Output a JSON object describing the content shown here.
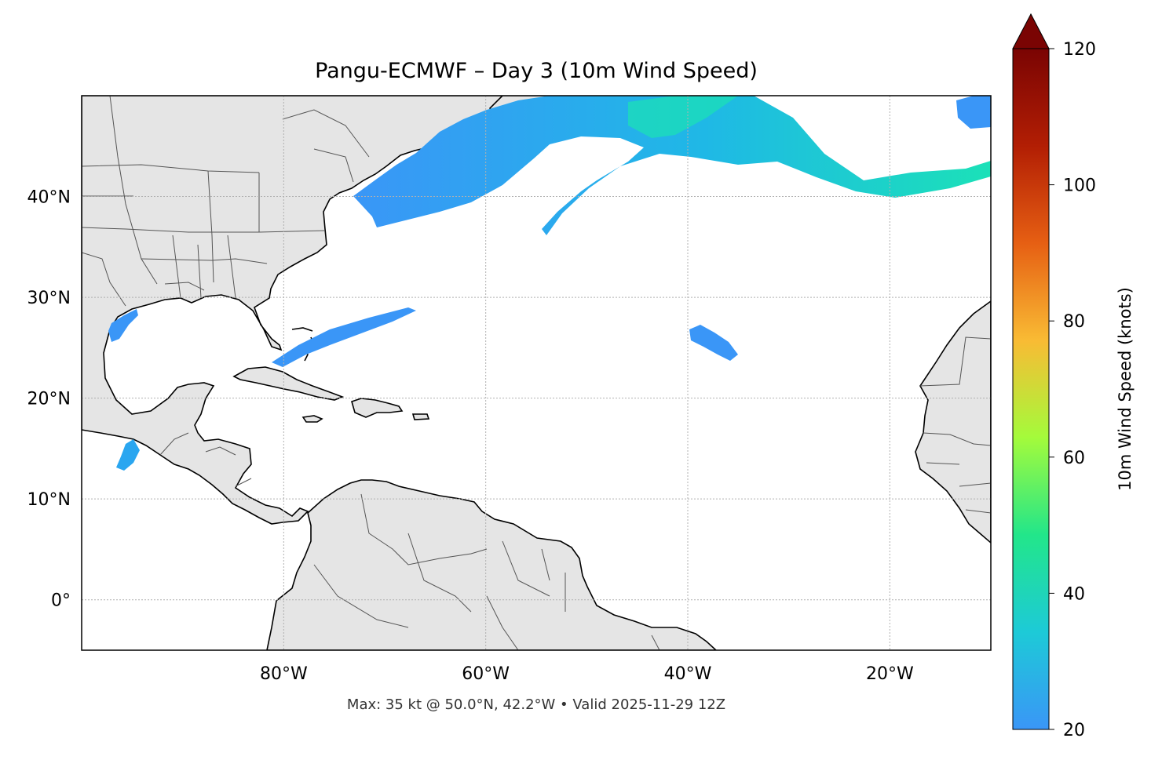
{
  "title": "Pangu-ECMWF – Day 3 (10m Wind Speed)",
  "footer": "Max: 35 kt @ 50.0°N, 42.2°W • Valid 2025-11-29 12Z",
  "map": {
    "lon_range": [
      -100,
      -10
    ],
    "lat_range": [
      -5,
      50
    ],
    "lat_ticks": [
      {
        "value": 40,
        "label": "40°N"
      },
      {
        "value": 30,
        "label": "30°N"
      },
      {
        "value": 20,
        "label": "20°N"
      },
      {
        "value": 10,
        "label": "10°N"
      },
      {
        "value": 0,
        "label": "0°"
      }
    ],
    "lon_ticks": [
      {
        "value": -80,
        "label": "80°W"
      },
      {
        "value": -60,
        "label": "60°W"
      },
      {
        "value": -40,
        "label": "40°W"
      },
      {
        "value": -20,
        "label": "20°W"
      }
    ],
    "gridlines": true,
    "colors": {
      "land": "#e5e5e5",
      "ocean": "#ffffff",
      "coastline": "#000000",
      "borders": "#555555"
    }
  },
  "colorbar": {
    "label": "10m Wind Speed (knots)",
    "min": 20,
    "max": 120,
    "extend": "max",
    "ticks": [
      {
        "value": 20,
        "label": "20"
      },
      {
        "value": 40,
        "label": "40"
      },
      {
        "value": 60,
        "label": "60"
      },
      {
        "value": 80,
        "label": "80"
      },
      {
        "value": 100,
        "label": "100"
      },
      {
        "value": 120,
        "label": "120"
      }
    ],
    "colormap": [
      "#3a96f7",
      "#1dcad7",
      "#22e68a",
      "#a4fb3b",
      "#f9bb34",
      "#e65f13",
      "#b21e04",
      "#7a0403"
    ]
  },
  "wind_features": [
    {
      "name": "north-atlantic-jet-west",
      "max_kt": 27
    },
    {
      "name": "north-atlantic-jet-core",
      "max_kt": 35
    },
    {
      "name": "subtropical-band",
      "max_kt": 22
    },
    {
      "name": "central-atlantic-patch",
      "max_kt": 21
    },
    {
      "name": "gulf-of-mexico-patch",
      "max_kt": 21
    },
    {
      "name": "east-pacific-patch",
      "max_kt": 24
    }
  ]
}
